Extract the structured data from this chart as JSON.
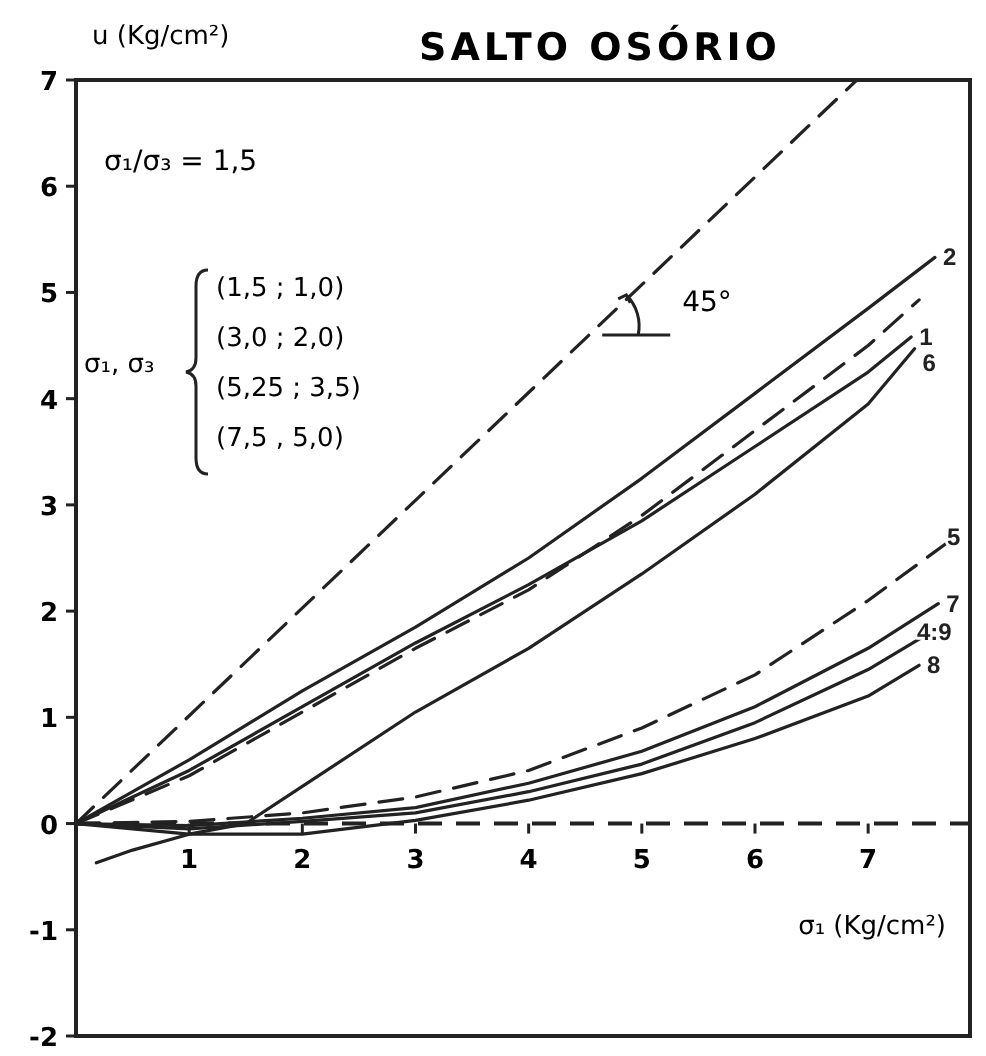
{
  "chart_data": {
    "type": "line",
    "title": "SALTO OSÓRIO",
    "xlabel": "σ₁ (Kg/cm²)",
    "ylabel": "u (Kg/cm²)",
    "xlim": [
      0,
      7.9
    ],
    "ylim": [
      -2,
      7
    ],
    "xticks": [
      1,
      2,
      3,
      4,
      5,
      6,
      7
    ],
    "yticks": [
      -2,
      -1,
      0,
      1,
      2,
      3,
      4,
      5,
      6,
      7
    ],
    "grid": false,
    "marker": "none",
    "ref_lines": [
      {
        "axis": "y",
        "value": 0,
        "line_style": "dashed",
        "color": "#222222"
      }
    ],
    "annotations": [
      "σ₁/σ₃ = 1,5",
      "σ₁, σ₃",
      "(1,5 ; 1,0)",
      "(3,0 ; 2,0)",
      "(5,25 ; 3,5)",
      "(7,5 , 5,0)",
      {
        "text": "45°",
        "x": 4.65,
        "y": 4.6
      }
    ],
    "series": [
      {
        "color": "#222222",
        "line_style": "dashed",
        "x": [
          0,
          6.9
        ],
        "values": [
          0,
          7
        ]
      },
      {
        "name": "2",
        "color": "#222222",
        "line_style": "solid",
        "x": [
          0,
          1,
          2,
          3,
          4,
          5,
          6,
          7,
          7.59
        ],
        "values": [
          0,
          0.6,
          1.25,
          1.85,
          2.5,
          3.25,
          4.05,
          4.85,
          5.33
        ]
      },
      {
        "color": "#222222",
        "line_style": "dashed",
        "x": [
          0,
          1,
          2,
          3,
          4,
          5,
          6,
          7,
          7.45
        ],
        "values": [
          0,
          0.45,
          1.05,
          1.65,
          2.2,
          2.9,
          3.7,
          4.5,
          4.93
        ]
      },
      {
        "name": "1",
        "color": "#222222",
        "line_style": "solid",
        "x": [
          0,
          1,
          2,
          3,
          4,
          5,
          6,
          7,
          7.38
        ],
        "values": [
          0,
          0.5,
          1.1,
          1.7,
          2.25,
          2.85,
          3.55,
          4.25,
          4.58
        ]
      },
      {
        "name": "6",
        "color": "#222222",
        "line_style": "solid",
        "x": [
          0.18,
          0.5,
          1,
          1.5,
          2,
          3,
          4,
          5,
          6,
          7,
          7.41
        ],
        "values": [
          -0.37,
          -0.25,
          -0.1,
          0,
          0.35,
          1.05,
          1.65,
          2.35,
          3.1,
          3.95,
          4.47
        ]
      },
      {
        "name": "5",
        "color": "#222222",
        "line_style": "dashed",
        "x": [
          0,
          1,
          2,
          3,
          4,
          5,
          6,
          7,
          7.77
        ],
        "values": [
          0,
          0.02,
          0.1,
          0.25,
          0.5,
          0.9,
          1.4,
          2.1,
          2.7
        ]
      },
      {
        "name": "7",
        "color": "#222222",
        "line_style": "solid",
        "x": [
          0,
          1,
          2,
          3,
          4,
          5,
          6,
          7,
          7.62
        ],
        "values": [
          0,
          -0.02,
          0.05,
          0.15,
          0.38,
          0.68,
          1.1,
          1.65,
          2.07
        ]
      },
      {
        "name": "4:9",
        "color": "#222222",
        "line_style": "solid",
        "x": [
          0,
          1,
          2,
          3,
          4,
          5,
          6,
          7,
          7.55
        ],
        "values": [
          0,
          -0.05,
          0.02,
          0.1,
          0.3,
          0.56,
          0.95,
          1.45,
          1.8
        ]
      },
      {
        "name": "8",
        "color": "#222222",
        "line_style": "solid",
        "x": [
          0,
          1,
          2,
          3,
          4,
          5,
          6,
          7,
          7.45
        ],
        "values": [
          0,
          -0.1,
          -0.1,
          0.03,
          0.22,
          0.47,
          0.8,
          1.2,
          1.49
        ]
      }
    ]
  }
}
